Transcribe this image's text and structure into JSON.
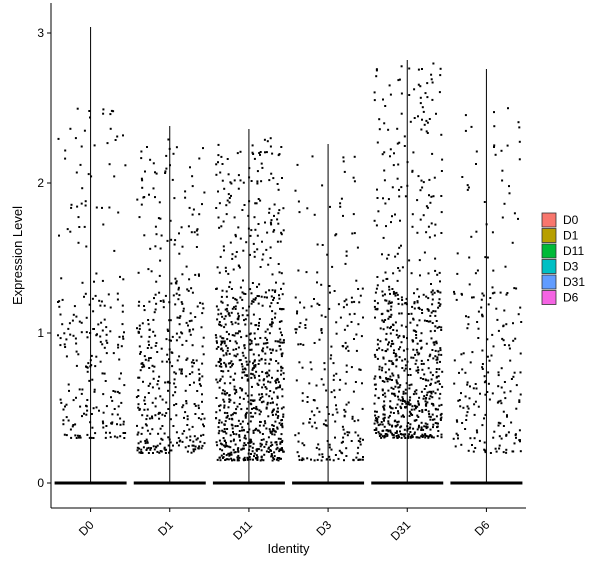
{
  "chart_data": {
    "type": "scatter",
    "subtype": "violin-jitter",
    "title": "",
    "xlabel": "Identity",
    "ylabel": "Expression Level",
    "categories": [
      "D0",
      "D1",
      "D11",
      "D3",
      "D31",
      "D6"
    ],
    "ylim": [
      -0.18,
      3.2
    ],
    "yticks": [
      0,
      1,
      2,
      3
    ],
    "grid": false,
    "legend": {
      "position": "right",
      "entries": [
        {
          "label": "D0",
          "color": "#F8766D"
        },
        {
          "label": "D1",
          "color": "#B79F00"
        },
        {
          "label": "D11",
          "color": "#00BA38"
        },
        {
          "label": "D3",
          "color": "#00BFC4"
        },
        {
          "label": "D31",
          "color": "#619CFF"
        },
        {
          "label": "D6",
          "color": "#F564E3"
        }
      ]
    },
    "series": [
      {
        "name": "D0",
        "max": 3.04,
        "n_points": 240,
        "dist": [
          0.3,
          2.5
        ]
      },
      {
        "name": "D1",
        "max": 2.38,
        "n_points": 420,
        "dist": [
          0.2,
          2.3
        ]
      },
      {
        "name": "D11",
        "max": 2.36,
        "n_points": 850,
        "dist": [
          0.15,
          2.3
        ]
      },
      {
        "name": "D3",
        "max": 2.26,
        "n_points": 240,
        "dist": [
          0.15,
          2.2
        ]
      },
      {
        "name": "D31",
        "max": 2.82,
        "n_points": 750,
        "dist": [
          0.3,
          2.8
        ]
      },
      {
        "name": "D6",
        "max": 2.76,
        "n_points": 230,
        "dist": [
          0.2,
          2.5
        ]
      }
    ]
  }
}
